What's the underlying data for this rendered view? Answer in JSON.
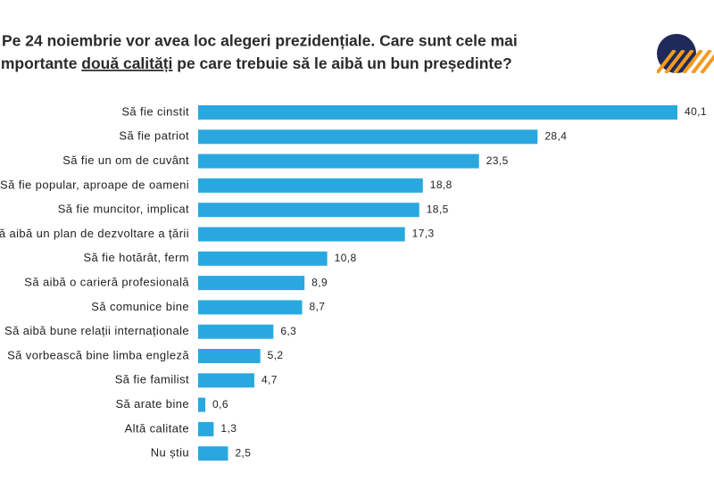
{
  "chart_data": {
    "type": "bar",
    "orientation": "horizontal",
    "title": {
      "line1": "Pe 24 noiembrie vor avea loc alegeri prezidențiale. Care sunt cele mai",
      "line2_before": "Importante ",
      "line2_underlined": "două calități",
      "line2_after": " pe care trebuie să le aibă un bun președinte?"
    },
    "categories": [
      "Să fie cinstit",
      "Să fie patriot",
      "Să fie un om de cuvânt",
      "Să fie popular, aproape de oameni",
      "Să fie muncitor, implicat",
      "Să aibă un plan de dezvoltare a țării",
      "Să fie hotărât, ferm",
      "Să aibă o carieră profesională",
      "Să comunice bine",
      "Să aibă bune relații internaționale",
      "Să vorbească bine limba engleză",
      "Să fie familist",
      "Să arate bine",
      "Altă calitate",
      "Nu știu"
    ],
    "values": [
      40.1,
      28.4,
      23.5,
      18.8,
      18.5,
      17.3,
      10.8,
      8.9,
      8.7,
      6.3,
      5.2,
      4.7,
      0.6,
      1.3,
      2.5
    ],
    "value_labels": [
      "40,1",
      "28,4",
      "23,5",
      "18,8",
      "18,5",
      "17,3",
      "10,8",
      "8,9",
      "8,7",
      "6,3",
      "5,2",
      "4,7",
      "0,6",
      "1,3",
      "2,5"
    ],
    "color": "#29a8e0"
  }
}
